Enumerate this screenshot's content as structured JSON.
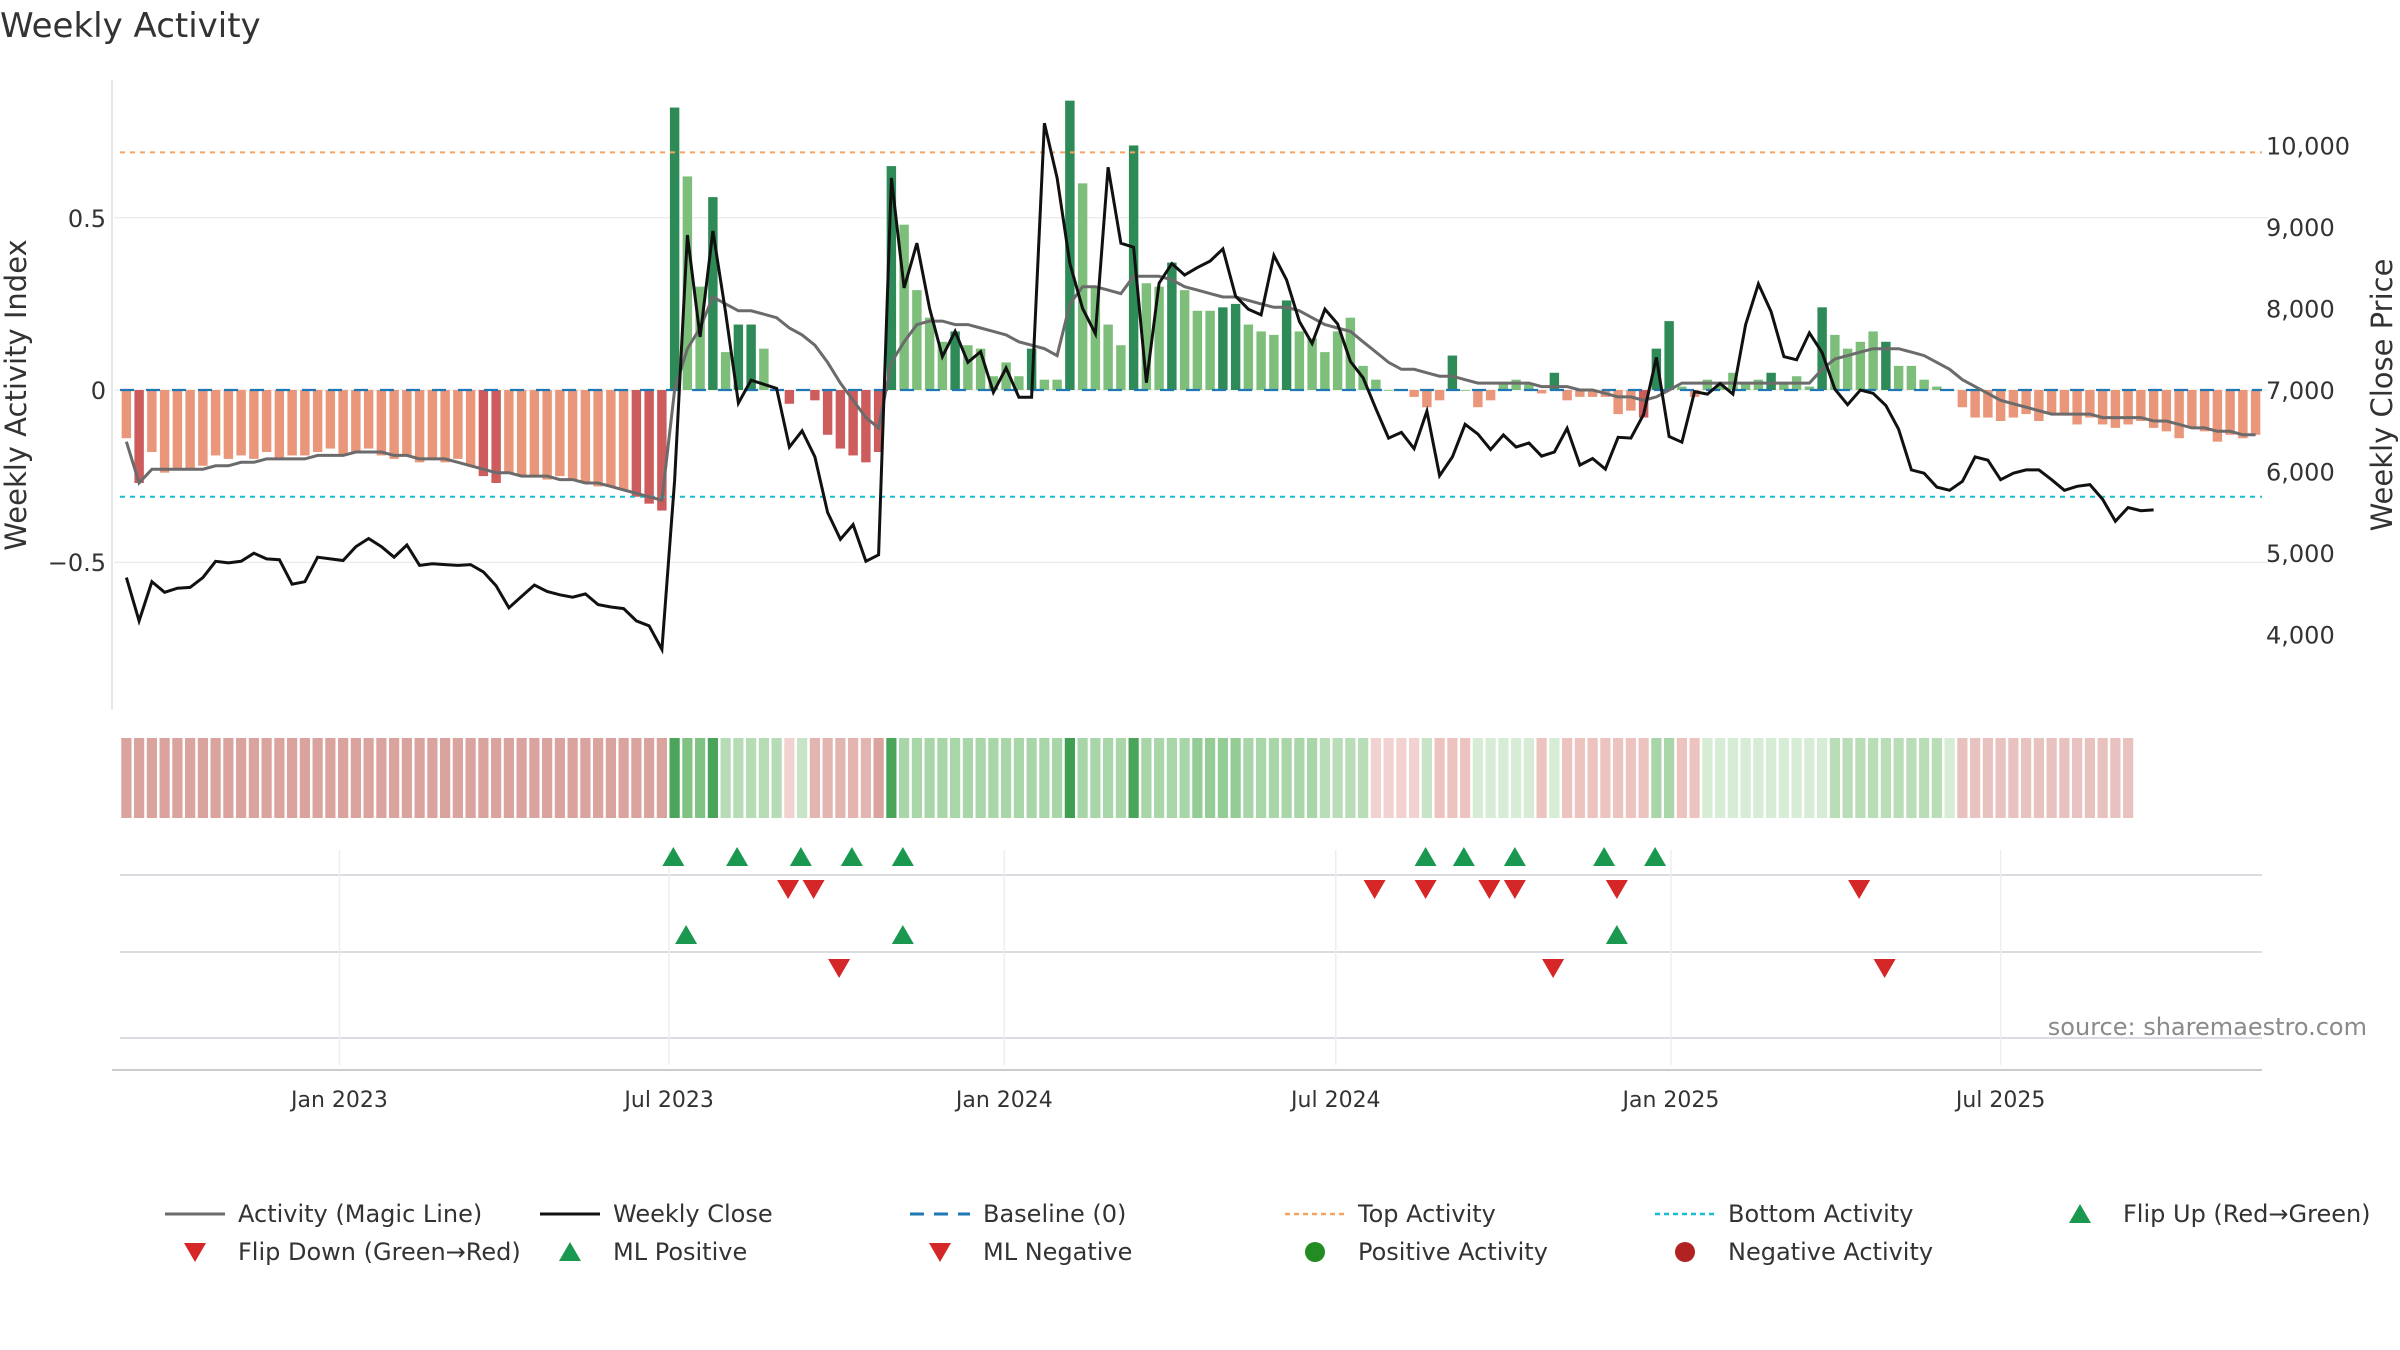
{
  "title": "Weekly Activity",
  "source": "source: sharemaestro.com",
  "colors": {
    "pos_dark": "#2e8b57",
    "pos_light": "#7dbf7a",
    "neg_dark": "#cd5c5c",
    "neg_light": "#e9967a",
    "magic": "#6b6b6b",
    "close": "#111111",
    "baseline": "#1f77b4",
    "top": "#f4a460",
    "bottom": "#17becf",
    "up": "#1a9850",
    "down": "#d62728",
    "pos_dot": "#228b22",
    "neg_dot": "#b22222"
  },
  "chart_data": {
    "type": "bar",
    "x_start": "2022-09-06",
    "x_step_days": 7,
    "x_tick_labels": [
      {
        "date": "2023-01-01",
        "label": "Jan 2023"
      },
      {
        "date": "2023-07-01",
        "label": "Jul 2023"
      },
      {
        "date": "2024-01-01",
        "label": "Jan 2024"
      },
      {
        "date": "2024-07-01",
        "label": "Jul 2024"
      },
      {
        "date": "2025-01-01",
        "label": "Jan 2025"
      },
      {
        "date": "2025-07-01",
        "label": "Jul 2025"
      }
    ],
    "y_left": {
      "label": "Weekly Activity Index",
      "range": [
        -0.9,
        0.9
      ],
      "ticks": [
        0.5,
        0,
        -0.5
      ],
      "tick_labels": [
        "0.5",
        "0",
        "−0.5"
      ]
    },
    "y_right": {
      "label": "Weekly Close Price",
      "range": [
        3200,
        10800
      ],
      "ticks": [
        4000,
        5000,
        6000,
        7000,
        8000,
        9000,
        10000
      ],
      "tick_labels": [
        "4,000",
        "5,000",
        "6,000",
        "7,000",
        "8,000",
        "9,000",
        "10,000"
      ]
    },
    "top_activity": 0.69,
    "bottom_activity": -0.31,
    "activity": [
      -0.14,
      -0.27,
      -0.18,
      -0.24,
      -0.23,
      -0.23,
      -0.22,
      -0.19,
      -0.2,
      -0.19,
      -0.2,
      -0.18,
      -0.2,
      -0.19,
      -0.19,
      -0.18,
      -0.17,
      -0.19,
      -0.18,
      -0.17,
      -0.19,
      -0.2,
      -0.19,
      -0.21,
      -0.2,
      -0.21,
      -0.2,
      -0.22,
      -0.25,
      -0.27,
      -0.24,
      -0.25,
      -0.25,
      -0.26,
      -0.25,
      -0.26,
      -0.27,
      -0.28,
      -0.28,
      -0.29,
      -0.31,
      -0.33,
      -0.35,
      0.82,
      0.62,
      0.3,
      0.56,
      0.11,
      0.19,
      0.19,
      0.12,
      0,
      -0.04,
      0,
      -0.03,
      -0.13,
      -0.17,
      -0.19,
      -0.21,
      -0.18,
      0.65,
      0.48,
      0.29,
      0.21,
      0.14,
      0.17,
      0.13,
      0.12,
      0.04,
      0.08,
      0.04,
      0.12,
      0.03,
      0.03,
      0.84,
      0.6,
      0.3,
      0.19,
      0.13,
      0.71,
      0.31,
      0.3,
      0.37,
      0.29,
      0.23,
      0.23,
      0.24,
      0.25,
      0.19,
      0.17,
      0.16,
      0.26,
      0.17,
      0.15,
      0.11,
      0.17,
      0.21,
      0.07,
      0.03,
      0.0,
      0.0,
      -0.02,
      -0.05,
      -0.03,
      0.1,
      0.0,
      -0.05,
      -0.03,
      0.02,
      0.03,
      0.02,
      -0.01,
      0.05,
      -0.03,
      -0.02,
      -0.02,
      -0.02,
      -0.07,
      -0.06,
      -0.08,
      0.12,
      0.2,
      0.01,
      -0.02,
      0.03,
      0.02,
      0.05,
      0.02,
      0.03,
      0.05,
      0.02,
      0.04,
      0.01,
      0.24,
      0.16,
      0.12,
      0.14,
      0.17,
      0.14,
      0.07,
      0.07,
      0.03,
      0.01,
      0,
      -0.05,
      -0.08,
      -0.08,
      -0.09,
      -0.08,
      -0.07,
      -0.09,
      -0.07,
      -0.07,
      -0.1,
      -0.08,
      -0.1,
      -0.11,
      -0.1,
      -0.09,
      -0.11,
      -0.12,
      -0.14,
      -0.11,
      -0.12,
      -0.15,
      -0.13,
      -0.14,
      -0.13
    ],
    "activity_strong": [
      0,
      1,
      0,
      0,
      0,
      0,
      0,
      0,
      0,
      0,
      0,
      0,
      0,
      0,
      0,
      0,
      0,
      0,
      0,
      0,
      0,
      0,
      0,
      0,
      0,
      0,
      0,
      0,
      1,
      1,
      0,
      0,
      0,
      0,
      0,
      0,
      0,
      0,
      0,
      0,
      1,
      1,
      1,
      1,
      0,
      0,
      1,
      0,
      1,
      1,
      0,
      0,
      1,
      0,
      1,
      1,
      1,
      1,
      1,
      1,
      1,
      0,
      0,
      0,
      0,
      1,
      0,
      0,
      0,
      0,
      0,
      1,
      0,
      0,
      1,
      0,
      0,
      0,
      0,
      1,
      0,
      0,
      1,
      0,
      0,
      0,
      1,
      1,
      0,
      0,
      0,
      1,
      0,
      0,
      0,
      0,
      0,
      0,
      0,
      0,
      0,
      0,
      0,
      0,
      1,
      0,
      0,
      0,
      0,
      0,
      0,
      0,
      1,
      0,
      0,
      0,
      0,
      0,
      0,
      1,
      1,
      1,
      0,
      0,
      0,
      0,
      0,
      0,
      0,
      1,
      0,
      0,
      0,
      1,
      0,
      0,
      0,
      0,
      1,
      0,
      0,
      0,
      0,
      0,
      0,
      0,
      0,
      0,
      0,
      0,
      0,
      0,
      0,
      0,
      0,
      0,
      0,
      0,
      0,
      0,
      0,
      0,
      0,
      0,
      0,
      0
    ],
    "magic_line": [
      -0.15,
      -0.27,
      -0.23,
      -0.23,
      -0.23,
      -0.23,
      -0.23,
      -0.22,
      -0.22,
      -0.21,
      -0.21,
      -0.2,
      -0.2,
      -0.2,
      -0.2,
      -0.19,
      -0.19,
      -0.19,
      -0.18,
      -0.18,
      -0.18,
      -0.19,
      -0.19,
      -0.2,
      -0.2,
      -0.2,
      -0.21,
      -0.22,
      -0.23,
      -0.24,
      -0.24,
      -0.25,
      -0.25,
      -0.25,
      -0.26,
      -0.26,
      -0.27,
      -0.27,
      -0.28,
      -0.29,
      -0.3,
      -0.31,
      -0.32,
      0.0,
      0.12,
      0.18,
      0.27,
      0.25,
      0.23,
      0.23,
      0.22,
      0.21,
      0.18,
      0.16,
      0.13,
      0.08,
      0.02,
      -0.03,
      -0.08,
      -0.11,
      0.08,
      0.14,
      0.19,
      0.2,
      0.2,
      0.19,
      0.19,
      0.18,
      0.17,
      0.16,
      0.14,
      0.13,
      0.12,
      0.1,
      0.25,
      0.3,
      0.3,
      0.29,
      0.28,
      0.33,
      0.33,
      0.33,
      0.32,
      0.3,
      0.29,
      0.28,
      0.27,
      0.27,
      0.26,
      0.25,
      0.24,
      0.24,
      0.23,
      0.21,
      0.19,
      0.18,
      0.17,
      0.14,
      0.11,
      0.08,
      0.06,
      0.06,
      0.05,
      0.04,
      0.04,
      0.03,
      0.02,
      0.02,
      0.02,
      0.02,
      0.02,
      0.01,
      0.01,
      0.01,
      0.0,
      0.0,
      -0.01,
      -0.02,
      -0.02,
      -0.03,
      -0.02,
      0.0,
      0.02,
      0.02,
      0.02,
      0.02,
      0.02,
      0.02,
      0.02,
      0.02,
      0.02,
      0.02,
      0.02,
      0.06,
      0.09,
      0.1,
      0.11,
      0.12,
      0.12,
      0.12,
      0.11,
      0.1,
      0.08,
      0.06,
      0.03,
      0.01,
      -0.01,
      -0.03,
      -0.04,
      -0.05,
      -0.06,
      -0.07,
      -0.07,
      -0.07,
      -0.07,
      -0.08,
      -0.08,
      -0.08,
      -0.08,
      -0.09,
      -0.09,
      -0.1,
      -0.11,
      -0.11,
      -0.12,
      -0.12,
      -0.13,
      -0.13
    ],
    "weekly_close": [
      4700,
      4170,
      4650,
      4520,
      4570,
      4580,
      4700,
      4900,
      4880,
      4900,
      5000,
      4930,
      4920,
      4620,
      4650,
      4950,
      4930,
      4910,
      5080,
      5180,
      5080,
      4950,
      5100,
      4850,
      4870,
      4860,
      4850,
      4860,
      4770,
      4600,
      4330,
      4470,
      4610,
      4530,
      4490,
      4460,
      4500,
      4370,
      4340,
      4320,
      4170,
      4110,
      3820,
      5890,
      8900,
      7650,
      8950,
      7950,
      6840,
      7120,
      7070,
      7020,
      6300,
      6500,
      6180,
      5500,
      5170,
      5350,
      4900,
      4980,
      9600,
      8250,
      8800,
      8000,
      7410,
      7720,
      7340,
      7470,
      6970,
      7270,
      6910,
      6910,
      10270,
      9600,
      8550,
      8000,
      7690,
      9730,
      8800,
      8750,
      7090,
      8310,
      8550,
      8410,
      8500,
      8580,
      8730,
      8150,
      7990,
      7920,
      8650,
      8350,
      7840,
      7570,
      7990,
      7810,
      7350,
      7150,
      6770,
      6410,
      6480,
      6280,
      6740,
      5950,
      6180,
      6580,
      6460,
      6270,
      6450,
      6300,
      6350,
      6190,
      6240,
      6530,
      6080,
      6160,
      6030,
      6420,
      6410,
      6700,
      7400,
      6430,
      6360,
      6980,
      6950,
      7080,
      6950,
      7800,
      8300,
      7960,
      7410,
      7370,
      7700,
      7460,
      7010,
      6820,
      7000,
      6960,
      6810,
      6520,
      6020,
      5980,
      5810,
      5770,
      5880,
      6180,
      6140,
      5900,
      5980,
      6020,
      6020,
      5900,
      5770,
      5820,
      5840,
      5660,
      5390,
      5560,
      5520,
      5530
    ],
    "heat_row": [
      {
        "from": 0,
        "to": 42,
        "color": "#daa39e"
      },
      {
        "from": 43,
        "to": 43,
        "color": "#4aa45a"
      },
      {
        "from": 44,
        "to": 45,
        "color": "#80c283"
      },
      {
        "from": 46,
        "to": 46,
        "color": "#4aa45a"
      },
      {
        "from": 47,
        "to": 51,
        "color": "#b5dcb5"
      },
      {
        "from": 52,
        "to": 52,
        "color": "#f2d2d0"
      },
      {
        "from": 53,
        "to": 53,
        "color": "#c7e5c6"
      },
      {
        "from": 54,
        "to": 58,
        "color": "#e3b5b1"
      },
      {
        "from": 59,
        "to": 59,
        "color": "#daa39e"
      },
      {
        "from": 60,
        "to": 60,
        "color": "#4aa45a"
      },
      {
        "from": 61,
        "to": 73,
        "color": "#a9d6a9"
      },
      {
        "from": 74,
        "to": 74,
        "color": "#3f9f52"
      },
      {
        "from": 75,
        "to": 78,
        "color": "#a9d6a9"
      },
      {
        "from": 79,
        "to": 79,
        "color": "#4aa45a"
      },
      {
        "from": 80,
        "to": 83,
        "color": "#a9d6a9"
      },
      {
        "from": 84,
        "to": 87,
        "color": "#94cc95"
      },
      {
        "from": 88,
        "to": 93,
        "color": "#a9d6a9"
      },
      {
        "from": 94,
        "to": 97,
        "color": "#b8ddb7"
      },
      {
        "from": 98,
        "to": 101,
        "color": "#f2d2d0"
      },
      {
        "from": 102,
        "to": 102,
        "color": "#c7e5c6"
      },
      {
        "from": 103,
        "to": 105,
        "color": "#edc3c0"
      },
      {
        "from": 106,
        "to": 110,
        "color": "#d6ecd4"
      },
      {
        "from": 111,
        "to": 111,
        "color": "#edc3c0"
      },
      {
        "from": 112,
        "to": 112,
        "color": "#d6ecd4"
      },
      {
        "from": 113,
        "to": 119,
        "color": "#edc3c0"
      },
      {
        "from": 120,
        "to": 121,
        "color": "#a9d6a9"
      },
      {
        "from": 122,
        "to": 123,
        "color": "#edc3c0"
      },
      {
        "from": 124,
        "to": 133,
        "color": "#d6ecd4"
      },
      {
        "from": 134,
        "to": 142,
        "color": "#b8ddb7"
      },
      {
        "from": 143,
        "to": 143,
        "color": "#d6ecd4"
      },
      {
        "from": 144,
        "to": 157,
        "color": "#e8c2bf"
      }
    ],
    "flip_up": [
      42.9,
      47.9,
      52.9,
      56.9,
      60.9,
      101.9,
      104.9,
      108.9,
      115.9,
      119.9
    ],
    "flip_down": [
      51.9,
      53.9,
      97.9,
      101.9,
      106.9,
      108.9,
      116.9,
      135.9
    ],
    "ml_positive": [
      43.9,
      60.9,
      116.9
    ],
    "ml_negative": [
      55.9,
      111.9,
      137.9
    ],
    "legend": [
      {
        "label": "Activity (Magic Line)",
        "sym": "line-magic"
      },
      {
        "label": "Weekly Close",
        "sym": "line-close"
      },
      {
        "label": "Baseline (0)",
        "sym": "dash-baseline"
      },
      {
        "label": "Top Activity",
        "sym": "dot-top"
      },
      {
        "label": "Bottom Activity",
        "sym": "dot-bottom"
      },
      {
        "label": "Flip Up (Red→Green)",
        "sym": "tri-up"
      },
      {
        "label": "Flip Down (Green→Red)",
        "sym": "tri-down"
      },
      {
        "label": "ML Positive",
        "sym": "tri-up"
      },
      {
        "label": "ML Negative",
        "sym": "tri-down"
      },
      {
        "label": "Positive Activity",
        "sym": "dot-pos"
      },
      {
        "label": "Negative Activity",
        "sym": "dot-neg"
      }
    ]
  }
}
